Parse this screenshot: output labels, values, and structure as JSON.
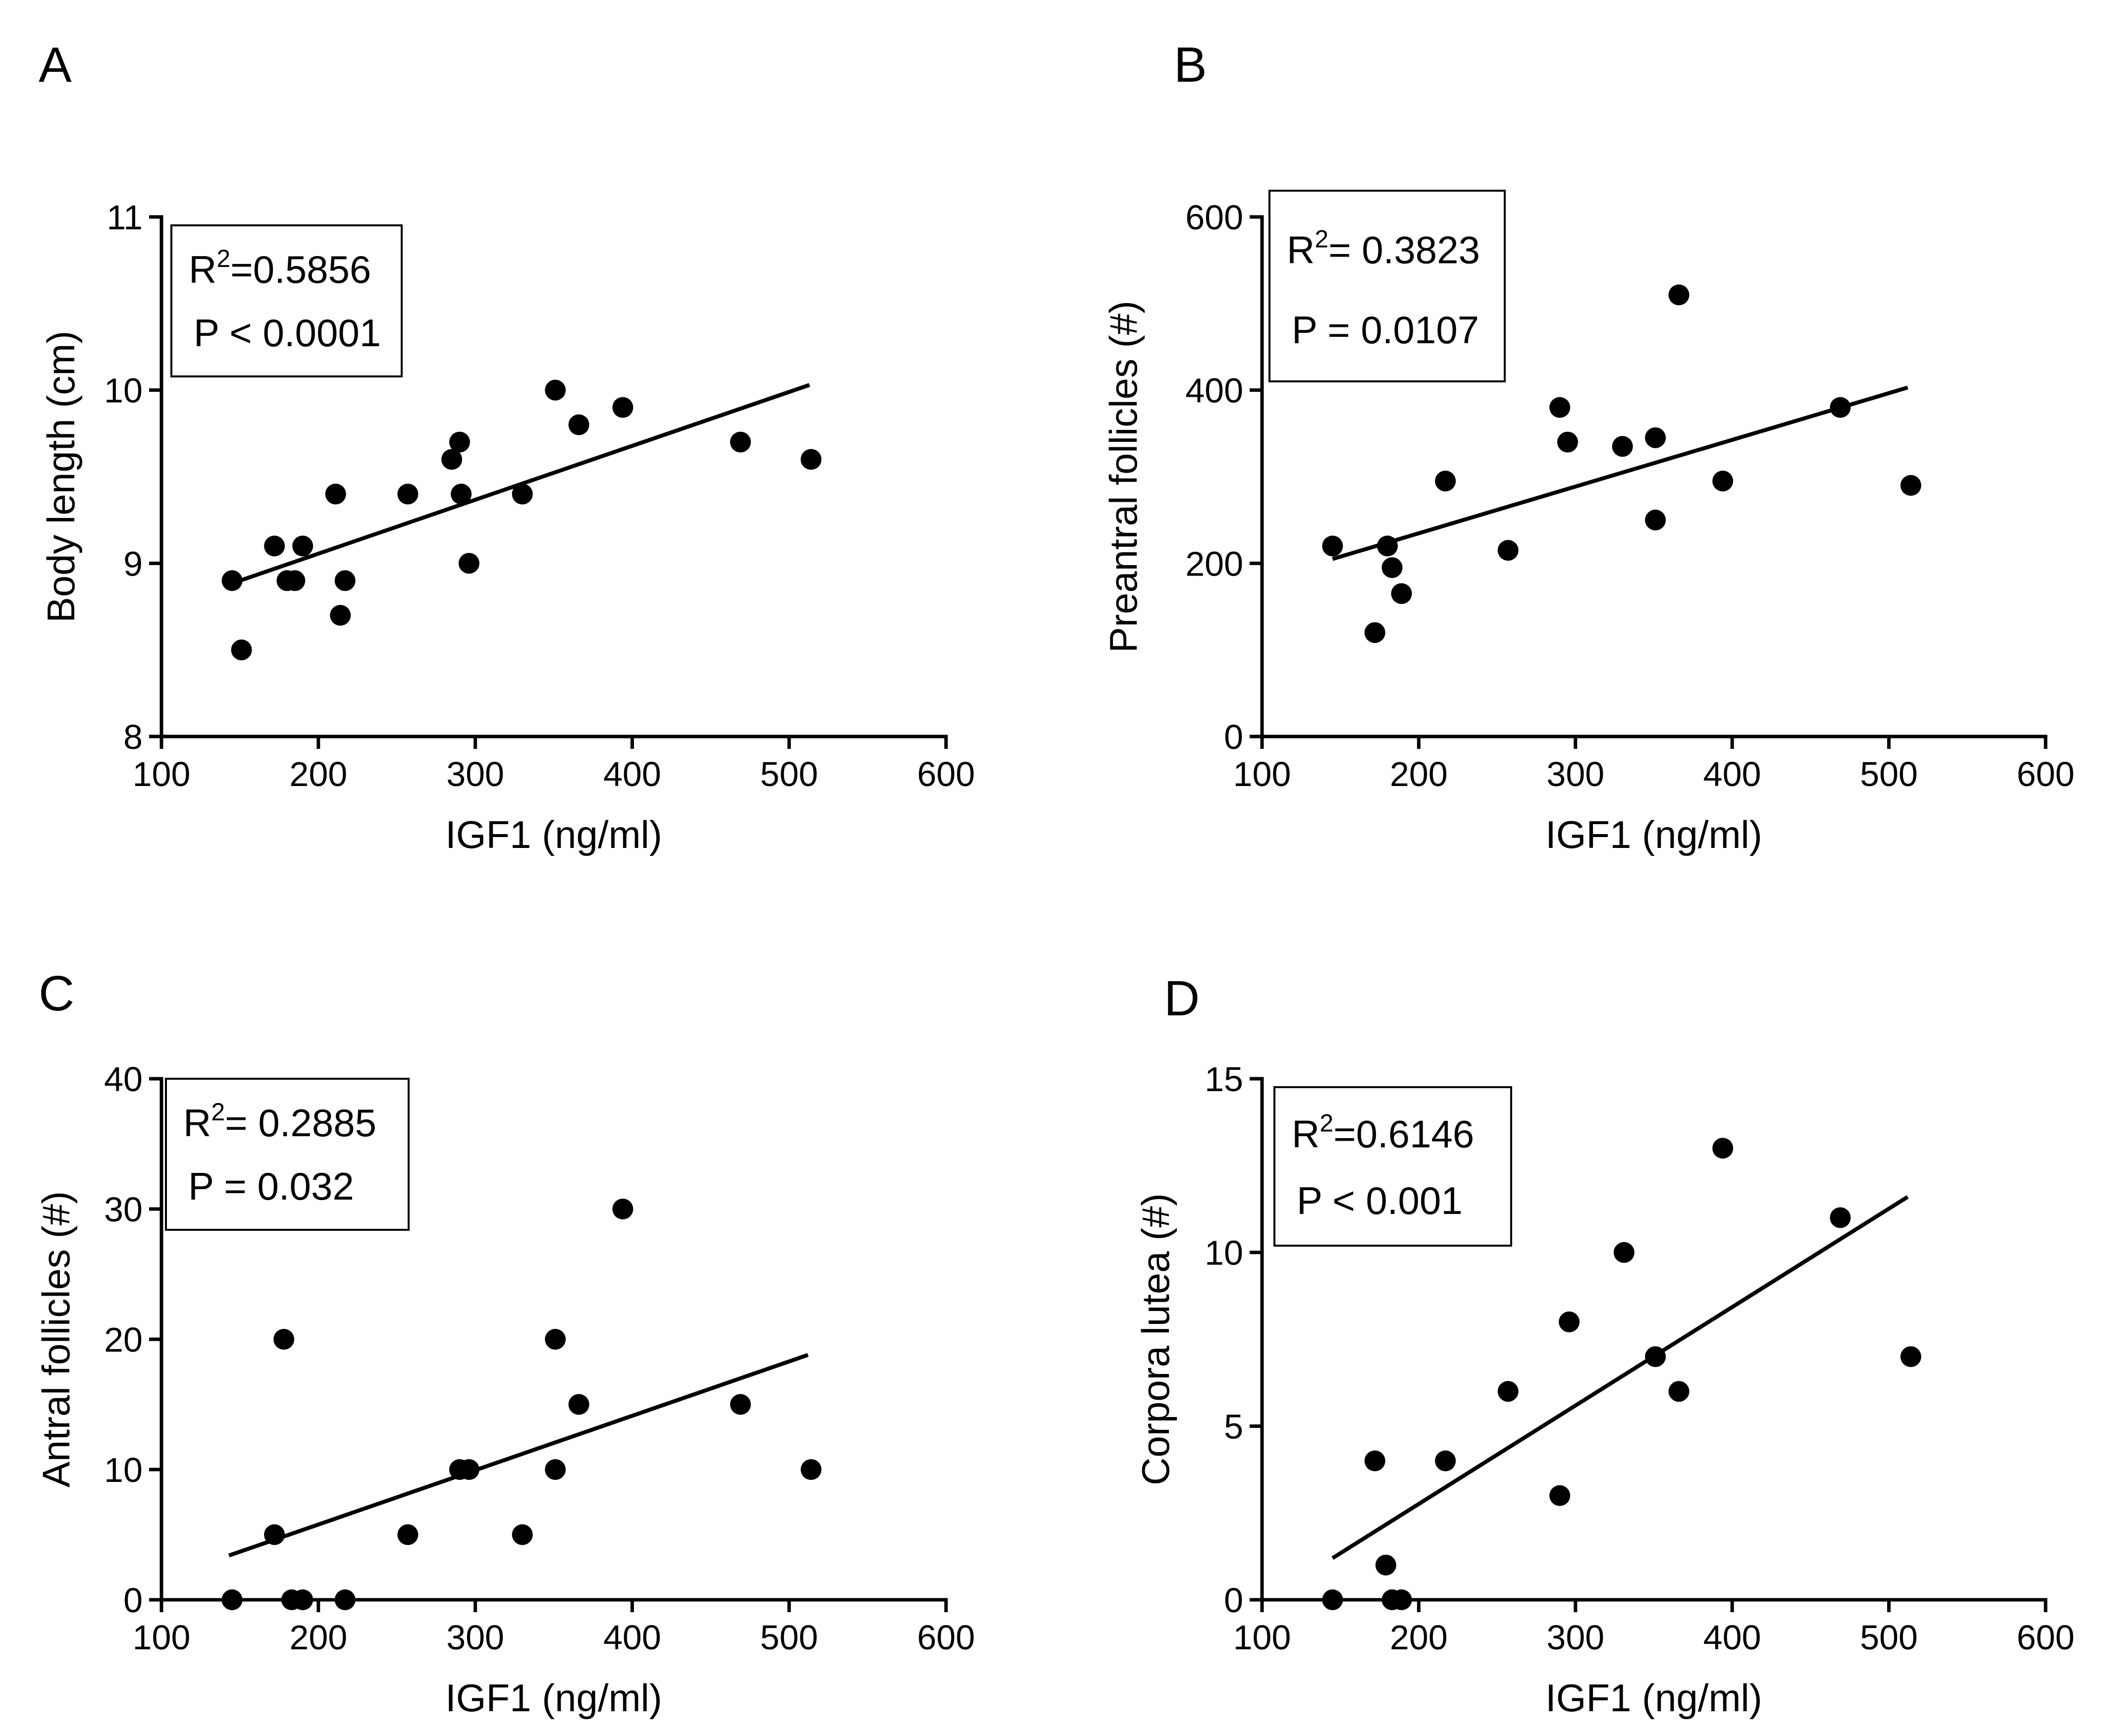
{
  "figure": {
    "panels": [
      "A",
      "B",
      "C",
      "D"
    ]
  },
  "chart_data": [
    {
      "panel": "A",
      "type": "scatter",
      "xlabel": "IGF1 (ng/ml)",
      "ylabel": "Body length (cm)",
      "xlim": [
        100,
        600
      ],
      "ylim": [
        8,
        11
      ],
      "xticks": [
        "100",
        "200",
        "300",
        "400",
        "500",
        "600"
      ],
      "yticks": [
        "8",
        "9",
        "10",
        "11"
      ],
      "stats": {
        "r2_label": "R",
        "r2_sup": "2",
        "r2_value": "=0.5856",
        "p_text": "P < 0.0001"
      },
      "fit": {
        "x": [
          150,
          513
        ],
        "y": [
          8.9,
          10.03
        ]
      },
      "points": [
        {
          "x": 145,
          "y": 8.9
        },
        {
          "x": 151,
          "y": 8.5
        },
        {
          "x": 172,
          "y": 9.1
        },
        {
          "x": 180,
          "y": 8.9
        },
        {
          "x": 185,
          "y": 8.9
        },
        {
          "x": 190,
          "y": 9.1
        },
        {
          "x": 211,
          "y": 9.4
        },
        {
          "x": 214,
          "y": 8.7
        },
        {
          "x": 217,
          "y": 8.9
        },
        {
          "x": 257,
          "y": 9.4
        },
        {
          "x": 285,
          "y": 9.6
        },
        {
          "x": 290,
          "y": 9.7
        },
        {
          "x": 291,
          "y": 9.4
        },
        {
          "x": 296,
          "y": 9.0
        },
        {
          "x": 330,
          "y": 9.4
        },
        {
          "x": 351,
          "y": 10.0
        },
        {
          "x": 366,
          "y": 9.8
        },
        {
          "x": 394,
          "y": 9.9
        },
        {
          "x": 469,
          "y": 9.7
        },
        {
          "x": 514,
          "y": 9.6
        }
      ]
    },
    {
      "panel": "B",
      "type": "scatter",
      "xlabel": "IGF1 (ng/ml)",
      "ylabel": "Preantral follicles (#)",
      "xlim": [
        100,
        600
      ],
      "ylim": [
        0,
        600
      ],
      "xticks": [
        "100",
        "200",
        "300",
        "400",
        "500",
        "600"
      ],
      "yticks": [
        "0",
        "200",
        "400",
        "600"
      ],
      "stats": {
        "r2_label": "R",
        "r2_sup": "2",
        "r2_value": "= 0.3823",
        "p_text": "P = 0.0107"
      },
      "fit": {
        "x": [
          145,
          512
        ],
        "y": [
          205,
          403
        ]
      },
      "points": [
        {
          "x": 145,
          "y": 220
        },
        {
          "x": 172,
          "y": 120
        },
        {
          "x": 180,
          "y": 220
        },
        {
          "x": 183,
          "y": 195
        },
        {
          "x": 189,
          "y": 165
        },
        {
          "x": 217,
          "y": 295
        },
        {
          "x": 257,
          "y": 215
        },
        {
          "x": 290,
          "y": 380
        },
        {
          "x": 295,
          "y": 340
        },
        {
          "x": 330,
          "y": 335
        },
        {
          "x": 351,
          "y": 345
        },
        {
          "x": 351,
          "y": 250
        },
        {
          "x": 366,
          "y": 510
        },
        {
          "x": 394,
          "y": 295
        },
        {
          "x": 469,
          "y": 380
        },
        {
          "x": 514,
          "y": 290
        }
      ]
    },
    {
      "panel": "C",
      "type": "scatter",
      "xlabel": "IGF1 (ng/ml)",
      "ylabel": "Antral follicles (#)",
      "xlim": [
        100,
        600
      ],
      "ylim": [
        0,
        40
      ],
      "xticks": [
        "100",
        "200",
        "300",
        "400",
        "500",
        "600"
      ],
      "yticks": [
        "0",
        "10",
        "20",
        "30",
        "40"
      ],
      "stats": {
        "r2_label": "R",
        "r2_sup": "2",
        "r2_value": "= 0.2885",
        "p_text": "P = 0.032"
      },
      "fit": {
        "x": [
          143,
          512
        ],
        "y": [
          3.4,
          18.8
        ]
      },
      "points": [
        {
          "x": 145,
          "y": 0
        },
        {
          "x": 172,
          "y": 5
        },
        {
          "x": 178,
          "y": 20
        },
        {
          "x": 183,
          "y": 0
        },
        {
          "x": 190,
          "y": 0
        },
        {
          "x": 217,
          "y": 0
        },
        {
          "x": 257,
          "y": 5
        },
        {
          "x": 290,
          "y": 10
        },
        {
          "x": 296,
          "y": 10
        },
        {
          "x": 330,
          "y": 5
        },
        {
          "x": 351,
          "y": 20
        },
        {
          "x": 351,
          "y": 10
        },
        {
          "x": 366,
          "y": 15
        },
        {
          "x": 394,
          "y": 30
        },
        {
          "x": 469,
          "y": 15
        },
        {
          "x": 514,
          "y": 10
        }
      ]
    },
    {
      "panel": "D",
      "type": "scatter",
      "xlabel": "IGF1 (ng/ml)",
      "ylabel": "Corpora lutea (#)",
      "xlim": [
        100,
        600
      ],
      "ylim": [
        0,
        15
      ],
      "xticks": [
        "100",
        "200",
        "300",
        "400",
        "500",
        "600"
      ],
      "yticks": [
        "0",
        "5",
        "10",
        "15"
      ],
      "stats": {
        "r2_label": "R",
        "r2_sup": "2",
        "r2_value": "=0.6146",
        "p_text": "P < 0.001"
      },
      "fit": {
        "x": [
          145,
          512
        ],
        "y": [
          1.2,
          11.6
        ]
      },
      "points": [
        {
          "x": 145,
          "y": 0
        },
        {
          "x": 172,
          "y": 4
        },
        {
          "x": 179,
          "y": 1
        },
        {
          "x": 183,
          "y": 0
        },
        {
          "x": 189,
          "y": 0
        },
        {
          "x": 217,
          "y": 4
        },
        {
          "x": 257,
          "y": 6
        },
        {
          "x": 290,
          "y": 3
        },
        {
          "x": 296,
          "y": 8
        },
        {
          "x": 331,
          "y": 10
        },
        {
          "x": 351,
          "y": 7
        },
        {
          "x": 366,
          "y": 6
        },
        {
          "x": 394,
          "y": 13
        },
        {
          "x": 469,
          "y": 11
        },
        {
          "x": 514,
          "y": 7
        }
      ]
    }
  ]
}
